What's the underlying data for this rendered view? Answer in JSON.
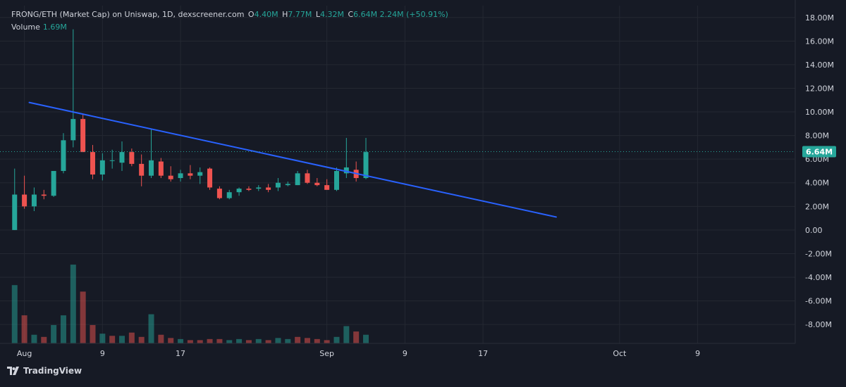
{
  "header": {
    "symbol": "FRONG/ETH (Market Cap) on Uniswap, 1D, dexscreener.com",
    "open_label": "O",
    "open_value": "4.40M",
    "high_label": "H",
    "high_value": "7.77M",
    "low_label": "L",
    "low_value": "4.32M",
    "close_label": "C",
    "close_value": "6.64M",
    "change": "2.24M (+50.91%)"
  },
  "volume_legend": {
    "label": "Volume",
    "value": "1.69M"
  },
  "brand": {
    "name": "TradingView",
    "logo_icon": "tradingview-logo-icon"
  },
  "price_tag": "6.64M",
  "colors": {
    "background": "#161a25",
    "up": "#26a69a",
    "down": "#ef5350",
    "trendline": "#2962ff",
    "grid": "#242832",
    "axis_text": "#d1d4dc"
  },
  "chart_data": {
    "type": "candlestick",
    "interval": "1D",
    "grid": true,
    "y_axis": {
      "range": [
        -9.6,
        19
      ],
      "ticks": [
        "18.00M",
        "16.00M",
        "14.00M",
        "12.00M",
        "10.00M",
        "8.00M",
        "6.00M",
        "4.00M",
        "2.00M",
        "0.00",
        "-2.00M",
        "-4.00M",
        "-6.00M",
        "-8.00M"
      ],
      "tick_values": [
        18,
        16,
        14,
        12,
        10,
        8,
        6,
        4,
        2,
        0,
        -2,
        -4,
        -6,
        -8
      ],
      "unit": "M"
    },
    "x_axis": {
      "ticks": [
        "Aug",
        "9",
        "17",
        "Sep",
        "9",
        "17",
        "Oct",
        "9"
      ],
      "tick_days": [
        1,
        9,
        17,
        32,
        40,
        48,
        62,
        70
      ],
      "day_range": [
        -1.5,
        80
      ]
    },
    "candles": [
      {
        "day": 0,
        "o": 0.0,
        "h": 5.2,
        "l": 0.0,
        "c": 3.0
      },
      {
        "day": 1,
        "o": 3.0,
        "h": 4.6,
        "l": 1.8,
        "c": 2.0
      },
      {
        "day": 2,
        "o": 2.0,
        "h": 3.6,
        "l": 1.6,
        "c": 3.0
      },
      {
        "day": 3,
        "o": 3.0,
        "h": 3.4,
        "l": 2.6,
        "c": 2.9
      },
      {
        "day": 4,
        "o": 2.9,
        "h": 5.0,
        "l": 2.8,
        "c": 5.0
      },
      {
        "day": 5,
        "o": 5.0,
        "h": 8.2,
        "l": 4.8,
        "c": 7.6
      },
      {
        "day": 6,
        "o": 7.6,
        "h": 17.0,
        "l": 7.0,
        "c": 9.4
      },
      {
        "day": 7,
        "o": 9.4,
        "h": 9.8,
        "l": 6.6,
        "c": 6.6
      },
      {
        "day": 8,
        "o": 6.6,
        "h": 7.2,
        "l": 4.3,
        "c": 4.7
      },
      {
        "day": 9,
        "o": 4.7,
        "h": 6.5,
        "l": 4.2,
        "c": 5.9
      },
      {
        "day": 10,
        "o": 5.9,
        "h": 6.8,
        "l": 5.2,
        "c": 5.9
      },
      {
        "day": 11,
        "o": 5.7,
        "h": 7.5,
        "l": 5.0,
        "c": 6.6
      },
      {
        "day": 12,
        "o": 6.6,
        "h": 6.9,
        "l": 5.4,
        "c": 5.6
      },
      {
        "day": 13,
        "o": 5.6,
        "h": 6.4,
        "l": 3.7,
        "c": 4.6
      },
      {
        "day": 14,
        "o": 4.6,
        "h": 8.6,
        "l": 4.4,
        "c": 5.9
      },
      {
        "day": 15,
        "o": 5.8,
        "h": 6.1,
        "l": 4.4,
        "c": 4.6
      },
      {
        "day": 16,
        "o": 4.6,
        "h": 5.4,
        "l": 4.1,
        "c": 4.3
      },
      {
        "day": 17,
        "o": 4.4,
        "h": 5.1,
        "l": 4.1,
        "c": 4.8
      },
      {
        "day": 18,
        "o": 4.8,
        "h": 5.5,
        "l": 4.3,
        "c": 4.6
      },
      {
        "day": 19,
        "o": 4.6,
        "h": 5.3,
        "l": 3.9,
        "c": 4.9
      },
      {
        "day": 20,
        "o": 5.2,
        "h": 5.3,
        "l": 3.4,
        "c": 3.6
      },
      {
        "day": 21,
        "o": 3.5,
        "h": 3.7,
        "l": 2.6,
        "c": 2.7
      },
      {
        "day": 22,
        "o": 2.7,
        "h": 3.4,
        "l": 2.6,
        "c": 3.2
      },
      {
        "day": 23,
        "o": 3.2,
        "h": 3.6,
        "l": 2.9,
        "c": 3.5
      },
      {
        "day": 24,
        "o": 3.5,
        "h": 3.7,
        "l": 3.3,
        "c": 3.4
      },
      {
        "day": 25,
        "o": 3.5,
        "h": 3.8,
        "l": 3.3,
        "c": 3.6
      },
      {
        "day": 26,
        "o": 3.6,
        "h": 3.9,
        "l": 3.2,
        "c": 3.4
      },
      {
        "day": 27,
        "o": 3.6,
        "h": 4.4,
        "l": 3.3,
        "c": 4.0
      },
      {
        "day": 28,
        "o": 3.8,
        "h": 4.1,
        "l": 3.7,
        "c": 3.9
      },
      {
        "day": 29,
        "o": 3.8,
        "h": 5.0,
        "l": 3.8,
        "c": 4.8
      },
      {
        "day": 30,
        "o": 4.8,
        "h": 5.1,
        "l": 3.9,
        "c": 4.0
      },
      {
        "day": 31,
        "o": 4.0,
        "h": 4.4,
        "l": 3.7,
        "c": 3.8
      },
      {
        "day": 32,
        "o": 3.8,
        "h": 4.3,
        "l": 3.4,
        "c": 3.4
      },
      {
        "day": 33,
        "o": 3.4,
        "h": 5.3,
        "l": 3.3,
        "c": 5.0
      },
      {
        "day": 34,
        "o": 4.8,
        "h": 7.8,
        "l": 4.4,
        "c": 5.3
      },
      {
        "day": 35,
        "o": 5.1,
        "h": 5.8,
        "l": 4.1,
        "c": 4.4
      },
      {
        "day": 36,
        "o": 4.4,
        "h": 7.8,
        "l": 4.3,
        "c": 6.6
      }
    ],
    "volume": [
      {
        "day": 0,
        "value": 5.4,
        "dir": "up"
      },
      {
        "day": 1,
        "value": 2.6,
        "dir": "down"
      },
      {
        "day": 2,
        "value": 0.8,
        "dir": "up"
      },
      {
        "day": 3,
        "value": 0.6,
        "dir": "down"
      },
      {
        "day": 4,
        "value": 1.7,
        "dir": "up"
      },
      {
        "day": 5,
        "value": 2.6,
        "dir": "up"
      },
      {
        "day": 6,
        "value": 7.3,
        "dir": "up"
      },
      {
        "day": 7,
        "value": 4.8,
        "dir": "down"
      },
      {
        "day": 8,
        "value": 1.7,
        "dir": "down"
      },
      {
        "day": 9,
        "value": 0.9,
        "dir": "up"
      },
      {
        "day": 10,
        "value": 0.7,
        "dir": "down"
      },
      {
        "day": 11,
        "value": 0.7,
        "dir": "up"
      },
      {
        "day": 12,
        "value": 1.0,
        "dir": "down"
      },
      {
        "day": 13,
        "value": 0.6,
        "dir": "down"
      },
      {
        "day": 14,
        "value": 2.7,
        "dir": "up"
      },
      {
        "day": 15,
        "value": 0.8,
        "dir": "down"
      },
      {
        "day": 16,
        "value": 0.5,
        "dir": "down"
      },
      {
        "day": 17,
        "value": 0.4,
        "dir": "up"
      },
      {
        "day": 18,
        "value": 0.3,
        "dir": "down"
      },
      {
        "day": 19,
        "value": 0.3,
        "dir": "down"
      },
      {
        "day": 20,
        "value": 0.4,
        "dir": "down"
      },
      {
        "day": 21,
        "value": 0.4,
        "dir": "down"
      },
      {
        "day": 22,
        "value": 0.3,
        "dir": "up"
      },
      {
        "day": 23,
        "value": 0.4,
        "dir": "up"
      },
      {
        "day": 24,
        "value": 0.3,
        "dir": "down"
      },
      {
        "day": 25,
        "value": 0.4,
        "dir": "up"
      },
      {
        "day": 26,
        "value": 0.3,
        "dir": "down"
      },
      {
        "day": 27,
        "value": 0.5,
        "dir": "up"
      },
      {
        "day": 28,
        "value": 0.4,
        "dir": "up"
      },
      {
        "day": 29,
        "value": 0.6,
        "dir": "down"
      },
      {
        "day": 30,
        "value": 0.5,
        "dir": "down"
      },
      {
        "day": 31,
        "value": 0.4,
        "dir": "down"
      },
      {
        "day": 32,
        "value": 0.3,
        "dir": "down"
      },
      {
        "day": 33,
        "value": 0.6,
        "dir": "up"
      },
      {
        "day": 34,
        "value": 1.6,
        "dir": "up"
      },
      {
        "day": 35,
        "value": 1.1,
        "dir": "down"
      },
      {
        "day": 36,
        "value": 0.8,
        "dir": "up"
      }
    ],
    "volume_scale_max": 7.5,
    "trendline": {
      "from": {
        "day": 1.5,
        "value": 10.8
      },
      "to": {
        "day": 55.5,
        "value": 1.1
      }
    },
    "last_price": 6.64
  }
}
